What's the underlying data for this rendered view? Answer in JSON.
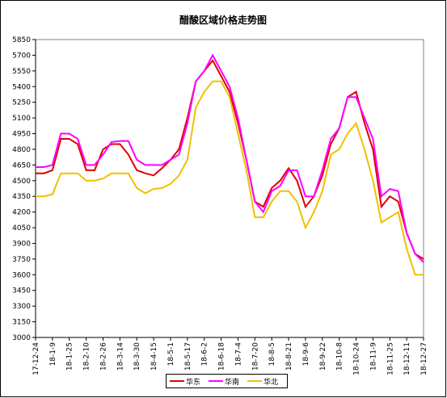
{
  "chart_data": {
    "type": "line",
    "title": "醋酸区域价格走势图",
    "categories": [
      "17-12-24",
      null,
      "18-1-9",
      null,
      "18-1-25",
      null,
      "18-2-10",
      null,
      "18-2-26",
      null,
      "18-3-14",
      null,
      "18-3-30",
      null,
      "18-4-15",
      null,
      "18-5-1",
      null,
      "18-5-17",
      null,
      "18-6-2",
      null,
      "18-6-18",
      null,
      "18-7-4",
      null,
      "18-7-20",
      null,
      "18-8-5",
      null,
      "18-8-21",
      null,
      "18-9-6",
      null,
      "18-9-22",
      null,
      "18-10-8",
      null,
      "18-10-24",
      null,
      "18-11-9",
      null,
      "18-11-25",
      null,
      "18-12-11",
      null,
      "18-12-27"
    ],
    "series": [
      {
        "name": "华东",
        "color": "#e00000",
        "values": [
          4570,
          4570,
          4600,
          4900,
          4900,
          4850,
          4600,
          4600,
          4800,
          4850,
          4850,
          4750,
          4600,
          4570,
          4550,
          4620,
          4700,
          4800,
          5100,
          5450,
          5550,
          5650,
          5500,
          5350,
          5050,
          4700,
          4300,
          4250,
          4430,
          4500,
          4620,
          4500,
          4250,
          4350,
          4550,
          4850,
          5000,
          5300,
          5350,
          5050,
          4800,
          4250,
          4350,
          4300,
          4000,
          3800,
          3750
        ]
      },
      {
        "name": "华南",
        "color": "#ff00ff",
        "values": [
          4630,
          4630,
          4650,
          4950,
          4950,
          4900,
          4650,
          4650,
          4750,
          4870,
          4880,
          4880,
          4700,
          4650,
          4650,
          4650,
          4700,
          4750,
          5050,
          5450,
          5550,
          5700,
          5550,
          5400,
          5100,
          4700,
          4300,
          4200,
          4400,
          4450,
          4600,
          4600,
          4350,
          4350,
          4600,
          4900,
          5000,
          5300,
          5300,
          5100,
          4900,
          4350,
          4420,
          4400,
          4000,
          3800,
          3720
        ]
      },
      {
        "name": "华北",
        "color": "#f0c000",
        "values": [
          4350,
          4350,
          4370,
          4570,
          4570,
          4570,
          4500,
          4500,
          4520,
          4570,
          4570,
          4570,
          4430,
          4380,
          4420,
          4430,
          4470,
          4550,
          4700,
          5200,
          5350,
          5450,
          5450,
          5300,
          4950,
          4600,
          4150,
          4150,
          4300,
          4400,
          4400,
          4300,
          4050,
          4200,
          4400,
          4750,
          4800,
          4950,
          5050,
          4800,
          4500,
          4100,
          4150,
          4200,
          3850,
          3600,
          3600
        ]
      }
    ],
    "ylim": [
      3000,
      5850
    ],
    "yticks": [
      3000,
      3150,
      3300,
      3450,
      3600,
      3750,
      3900,
      4050,
      4200,
      4350,
      4500,
      4650,
      4800,
      4950,
      5100,
      5250,
      5400,
      5550,
      5700,
      5850
    ]
  }
}
